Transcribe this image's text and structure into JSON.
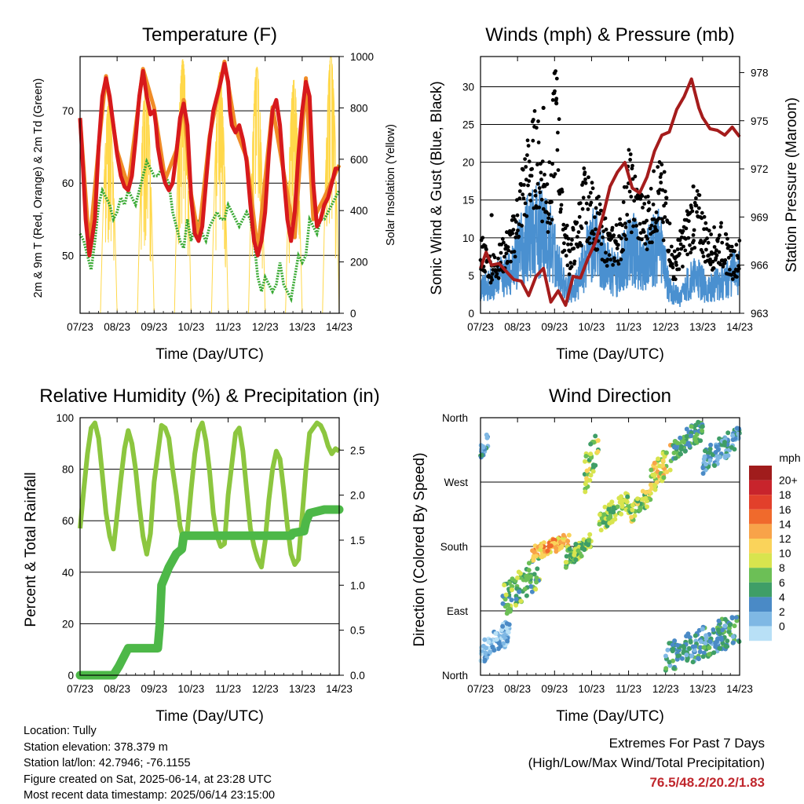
{
  "xticks": [
    "07/23",
    "08/23",
    "09/23",
    "10/23",
    "11/23",
    "12/23",
    "13/23",
    "14/23"
  ],
  "chart_data": [
    {
      "type": "line",
      "title": "Temperature (F)",
      "xlabel": "Time (Day/UTC)",
      "ylabel": "2m & 9m T (Red, Orange) & 2m Td (Green)",
      "ylabel_right": "Solar Insolation (Yellow)",
      "ylim": [
        42,
        77.5
      ],
      "ylim_right": [
        0,
        1000
      ],
      "yticks": [
        50,
        60,
        70
      ],
      "yticks_right": [
        0,
        200,
        400,
        600,
        800,
        1000
      ],
      "grid": true,
      "series": [
        {
          "name": "2m T",
          "color": "#d7191c",
          "x": [
            7.0,
            7.08,
            7.15,
            7.25,
            7.4,
            7.5,
            7.6,
            7.7,
            7.8,
            7.9,
            8.0,
            8.1,
            8.2,
            8.3,
            8.4,
            8.5,
            8.6,
            8.7,
            8.8,
            8.9,
            9.0,
            9.05,
            9.1,
            9.2,
            9.3,
            9.4,
            9.5,
            9.6,
            9.7,
            9.8,
            9.9,
            10.0,
            10.1,
            10.2,
            10.3,
            10.4,
            10.5,
            10.6,
            10.7,
            10.8,
            10.9,
            11.0,
            11.05,
            11.1,
            11.2,
            11.3,
            11.4,
            11.5,
            11.6,
            11.7,
            11.8,
            11.9,
            12.0,
            12.1,
            12.2,
            12.3,
            12.4,
            12.5,
            12.6,
            12.7,
            12.8,
            12.9,
            13.0,
            13.1,
            13.2,
            13.3,
            13.4,
            13.5,
            13.6,
            13.7,
            13.8,
            13.9,
            14.0
          ],
          "y": [
            69,
            62,
            55,
            50,
            55,
            65,
            72,
            74.5,
            72,
            68,
            64,
            61,
            59.5,
            59,
            61,
            66,
            72,
            75.5,
            72,
            69.5,
            70,
            68,
            65,
            62,
            60,
            59,
            60,
            64,
            69,
            71,
            68,
            58,
            53,
            52,
            54,
            60,
            66,
            70,
            72,
            74,
            76.5,
            74,
            70,
            68,
            67,
            68,
            66,
            63,
            57,
            52,
            50,
            52,
            56,
            64,
            70,
            71.5,
            68,
            61,
            55,
            52,
            56,
            64,
            70,
            74,
            72,
            60,
            54,
            55,
            57,
            58,
            60,
            62,
            62
          ]
        },
        {
          "name": "9m T",
          "color": "#f08c27",
          "x": [
            7.0,
            7.25,
            7.5,
            7.7,
            8.0,
            8.3,
            8.7,
            9.0,
            9.3,
            9.6,
            9.8,
            10.0,
            10.2,
            10.5,
            10.9,
            11.2,
            11.5,
            11.8,
            12.2,
            12.5,
            12.8,
            13.1,
            13.3,
            13.6,
            14.0
          ],
          "y": [
            69,
            51,
            65,
            74.8,
            64.5,
            59.5,
            75.8,
            70.4,
            60.5,
            64.5,
            71.5,
            58.5,
            52.5,
            66.5,
            76.8,
            67.5,
            63.5,
            50.5,
            70.5,
            61.5,
            52.5,
            74.5,
            55,
            58,
            62.5
          ]
        },
        {
          "name": "2m Td",
          "color": "#3aaa35",
          "x": [
            7.0,
            7.1,
            7.2,
            7.3,
            7.4,
            7.5,
            7.6,
            7.7,
            7.8,
            7.9,
            8.0,
            8.1,
            8.2,
            8.3,
            8.4,
            8.5,
            8.6,
            8.7,
            8.8,
            8.9,
            9.0,
            9.1,
            9.2,
            9.3,
            9.4,
            9.5,
            9.6,
            9.7,
            9.8,
            9.9,
            10.0,
            10.1,
            10.2,
            10.3,
            10.4,
            10.5,
            10.6,
            10.7,
            10.8,
            10.9,
            11.0,
            11.1,
            11.2,
            11.3,
            11.4,
            11.5,
            11.6,
            11.7,
            11.8,
            11.9,
            12.0,
            12.1,
            12.2,
            12.3,
            12.4,
            12.5,
            12.6,
            12.7,
            12.8,
            12.9,
            13.0,
            13.1,
            13.2,
            13.3,
            13.4,
            13.5,
            13.6,
            13.7,
            13.8,
            13.9,
            14.0
          ],
          "y": [
            53,
            52,
            50,
            48,
            52,
            57,
            59,
            58,
            57,
            55,
            56,
            58,
            57,
            59,
            58,
            57,
            59,
            61,
            63,
            62,
            61,
            61,
            62,
            61,
            60,
            56,
            54,
            52,
            51,
            55,
            52,
            54,
            55,
            53,
            52,
            54,
            55,
            56,
            55,
            55,
            57,
            56,
            55,
            54,
            55,
            56,
            55,
            52,
            47,
            45,
            47,
            46,
            45,
            46,
            49,
            46,
            45,
            44,
            47,
            50,
            49,
            50,
            55,
            54,
            53,
            55,
            55,
            56,
            57,
            58,
            59
          ]
        },
        {
          "name": "Solar Insolation",
          "color": "#ffd84a",
          "axis": "right",
          "days": [
            7,
            8,
            9,
            10,
            11,
            12,
            13
          ],
          "peaks": [
            820,
            900,
            990,
            940,
            960,
            910,
            1000
          ]
        }
      ]
    },
    {
      "type": "scatter",
      "title": "Winds (mph) & Pressure (mb)",
      "xlabel": "Time (Day/UTC)",
      "ylabel": "Sonic Wind & Gust (Blue, Black)",
      "ylabel_right": "Station Pressure (Maroon)",
      "ylim": [
        0,
        34
      ],
      "ylim_right": [
        963,
        979
      ],
      "yticks": [
        0,
        5,
        10,
        15,
        20,
        25,
        30
      ],
      "yticks_right": [
        963,
        966,
        969,
        972,
        975,
        978
      ],
      "grid": true,
      "series": [
        {
          "name": "Sonic Wind",
          "color": "#4a90d0",
          "x": [
            7.0,
            7.3,
            7.6,
            7.9,
            8.1,
            8.3,
            8.6,
            8.9,
            9.1,
            9.3,
            9.6,
            9.9,
            10.1,
            10.4,
            10.7,
            10.9,
            11.1,
            11.4,
            11.6,
            11.9,
            12.1,
            12.4,
            12.6,
            12.9,
            13.1,
            13.4,
            13.6,
            13.9,
            14.0
          ],
          "y": [
            3,
            4,
            5,
            6,
            9,
            10,
            11,
            9,
            6,
            3,
            4,
            8,
            9,
            6,
            5,
            8,
            9,
            6,
            8,
            9,
            3,
            2,
            4,
            5,
            3,
            4,
            4,
            6,
            5
          ]
        },
        {
          "name": "Gust",
          "color": "#000000",
          "x": [
            7.0,
            7.3,
            7.6,
            7.9,
            8.1,
            8.3,
            8.5,
            8.7,
            8.9,
            9.0,
            9.1,
            9.2,
            9.4,
            9.6,
            9.8,
            10.0,
            10.2,
            10.5,
            10.8,
            11.0,
            11.2,
            11.4,
            11.6,
            11.8,
            12.0,
            12.2,
            12.4,
            12.6,
            12.8,
            13.0,
            13.2,
            13.5,
            13.8,
            14.0
          ],
          "y": [
            10,
            7,
            9,
            12,
            18,
            22,
            25,
            20,
            18,
            31.8,
            27.8,
            15,
            9,
            12,
            18,
            16,
            14,
            10,
            12,
            20,
            17,
            14,
            16,
            19,
            17,
            7,
            10,
            13,
            16,
            13,
            10,
            11,
            8,
            9
          ]
        },
        {
          "name": "Station Pressure",
          "color": "#a51c1c",
          "axis": "right",
          "x": [
            7.0,
            7.15,
            7.3,
            7.5,
            7.7,
            7.9,
            8.1,
            8.3,
            8.5,
            8.7,
            8.9,
            9.1,
            9.3,
            9.5,
            9.7,
            9.9,
            10.1,
            10.3,
            10.5,
            10.7,
            10.9,
            11.1,
            11.3,
            11.5,
            11.7,
            11.9,
            12.1,
            12.3,
            12.5,
            12.7,
            12.9,
            13.0,
            13.2,
            13.4,
            13.6,
            13.8,
            14.0
          ],
          "y": [
            965.8,
            966.8,
            966,
            966.1,
            965.6,
            965.1,
            965,
            964.1,
            965.3,
            965.8,
            963.7,
            964.4,
            963.5,
            965.3,
            965.2,
            966.4,
            967.4,
            969,
            970.9,
            971.8,
            972.4,
            970.8,
            970.5,
            971.5,
            973.1,
            974.1,
            974.3,
            975.7,
            976.5,
            977.6,
            975.8,
            975.2,
            974.5,
            974.4,
            974.1,
            974.6,
            974.0
          ]
        }
      ]
    },
    {
      "type": "line",
      "title": "Relative Humidity (%) & Precipitation (in)",
      "xlabel": "Time (Day/UTC)",
      "ylabel": "Percent & Total Rainfall",
      "ylim": [
        0,
        100
      ],
      "ylim_right": [
        0,
        2.86
      ],
      "yticks": [
        0,
        20,
        40,
        60,
        80,
        100
      ],
      "yticks_right": [
        "0.0",
        "0.5",
        "1.0",
        "1.5",
        "2.0",
        "2.5"
      ],
      "grid": true,
      "series": [
        {
          "name": "Relative Humidity",
          "color": "#8cc63f",
          "x": [
            7.0,
            7.1,
            7.2,
            7.3,
            7.4,
            7.5,
            7.6,
            7.7,
            7.8,
            7.9,
            8.0,
            8.1,
            8.2,
            8.3,
            8.4,
            8.5,
            8.6,
            8.7,
            8.8,
            8.9,
            9.0,
            9.1,
            9.2,
            9.3,
            9.4,
            9.5,
            9.6,
            9.7,
            9.8,
            9.9,
            10.0,
            10.1,
            10.2,
            10.3,
            10.4,
            10.5,
            10.6,
            10.7,
            10.8,
            10.9,
            11.0,
            11.1,
            11.2,
            11.3,
            11.4,
            11.5,
            11.6,
            11.7,
            11.8,
            11.9,
            12.0,
            12.1,
            12.2,
            12.3,
            12.4,
            12.5,
            12.6,
            12.7,
            12.8,
            12.9,
            13.0,
            13.1,
            13.2,
            13.3,
            13.4,
            13.5,
            13.6,
            13.7,
            13.8,
            13.9,
            14.0
          ],
          "y": [
            57,
            72,
            86,
            96,
            98,
            92,
            78,
            63,
            54,
            49,
            62,
            76,
            88,
            95,
            90,
            80,
            66,
            54,
            47,
            55,
            75,
            86,
            97,
            96,
            92,
            80,
            70,
            58,
            52,
            56,
            72,
            86,
            95,
            98,
            91,
            79,
            63,
            54,
            50,
            51,
            70,
            82,
            94,
            96,
            87,
            72,
            57,
            50,
            45,
            42,
            52,
            68,
            80,
            87,
            84,
            72,
            58,
            47,
            43,
            45,
            62,
            80,
            94,
            96,
            98,
            97,
            94,
            89,
            86,
            88,
            87
          ]
        },
        {
          "name": "Total Rainfall",
          "color": "#4db848",
          "axis": "right",
          "x": [
            7.0,
            7.9,
            8.05,
            8.3,
            9.1,
            9.15,
            9.2,
            9.4,
            9.6,
            9.75,
            9.8,
            10.5,
            11.5,
            12.0,
            12.7,
            12.75,
            13.05,
            13.1,
            13.2,
            13.6,
            14.0
          ],
          "y": [
            0,
            0,
            0.1,
            0.3,
            0.3,
            0.55,
            1.0,
            1.2,
            1.35,
            1.4,
            1.55,
            1.55,
            1.55,
            1.55,
            1.55,
            1.58,
            1.6,
            1.7,
            1.8,
            1.84,
            1.84
          ]
        }
      ]
    },
    {
      "type": "scatter",
      "title": "Wind Direction",
      "xlabel": "Time (Day/UTC)",
      "ylabel": "Direction (Colored By Speed)",
      "yticks": [
        "North",
        "East",
        "South",
        "West",
        "North"
      ],
      "ylim": [
        0,
        360
      ],
      "grid": true,
      "colorbar": {
        "unit": "mph",
        "labels": [
          "20+",
          "18",
          "16",
          "14",
          "12",
          "10",
          "8",
          "6",
          "4",
          "2",
          "0"
        ],
        "colors": [
          "#a01c1c",
          "#c8242c",
          "#e2402b",
          "#f06a2c",
          "#f8a349",
          "#fad35a",
          "#d8e44e",
          "#6cbf56",
          "#3f9e67",
          "#4a8ac6",
          "#7fb8e4",
          "#b8e0f6"
        ]
      },
      "clusters": [
        {
          "x0": 7.0,
          "x1": 7.2,
          "dir0": 300,
          "dir1": 340,
          "speed": 4
        },
        {
          "x0": 7.0,
          "x1": 7.8,
          "dir0": 10,
          "dir1": 80,
          "speed": 2
        },
        {
          "x0": 7.6,
          "x1": 8.6,
          "dir0": 80,
          "dir1": 170,
          "speed": 7
        },
        {
          "x0": 8.4,
          "x1": 9.4,
          "dir0": 160,
          "dir1": 200,
          "speed": 13
        },
        {
          "x0": 9.3,
          "x1": 10.0,
          "dir0": 150,
          "dir1": 200,
          "speed": 8
        },
        {
          "x0": 9.8,
          "x1": 10.2,
          "dir0": 250,
          "dir1": 360,
          "speed": 9
        },
        {
          "x0": 10.2,
          "x1": 11.0,
          "dir0": 200,
          "dir1": 260,
          "speed": 8
        },
        {
          "x0": 11.0,
          "x1": 11.6,
          "dir0": 210,
          "dir1": 270,
          "speed": 9
        },
        {
          "x0": 11.6,
          "x1": 12.2,
          "dir0": 250,
          "dir1": 330,
          "speed": 11
        },
        {
          "x0": 12.2,
          "x1": 13.0,
          "dir0": 300,
          "dir1": 360,
          "speed": 6
        },
        {
          "x0": 13.0,
          "x1": 14.0,
          "dir0": 280,
          "dir1": 350,
          "speed": 4
        },
        {
          "x0": 12.0,
          "x1": 14.0,
          "dir0": 0,
          "dir1": 90,
          "speed": 5
        }
      ]
    }
  ],
  "info": {
    "location": "Location: Tully",
    "elevation": "Station elevation: 378.379 m",
    "latlon": "Station lat/lon: 42.7946; -76.1155",
    "created": "Figure created on Sat, 2025-06-14, at 23:28 UTC",
    "recent": "Most recent data timestamp: 2025/06/14 23:15:00"
  },
  "extremes": {
    "title": "Extremes For Past 7 Days",
    "subtitle": "(High/Low/Max Wind/Total Precipitation)",
    "values": "76.5/48.2/20.2/1.83"
  }
}
